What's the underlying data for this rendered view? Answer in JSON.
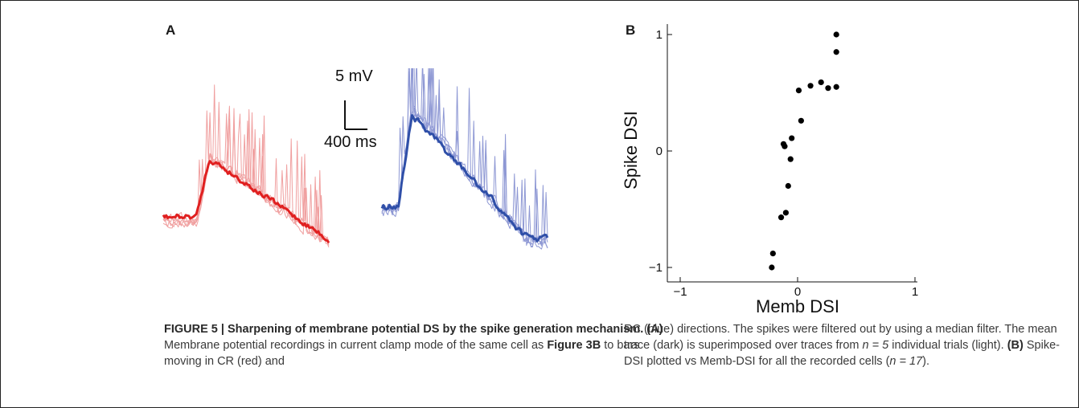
{
  "panel_a": {
    "label": "A",
    "scale_bar": {
      "voltage": "5 mV",
      "time": "400 ms"
    },
    "traces": {
      "cr_color": "#e02020",
      "cr_light_color": "#f0a0a0",
      "rc_color": "#2f4fa8",
      "rc_light_color": "#8e98d4"
    }
  },
  "panel_b": {
    "label": "B"
  },
  "chart_data": {
    "type": "scatter",
    "title": "",
    "xlabel": "Memb DSI",
    "ylabel": "Spike DSI",
    "xlim": [
      -1,
      1
    ],
    "ylim": [
      -1,
      1
    ],
    "xticks": [
      "−1",
      "0",
      "1"
    ],
    "yticks": [
      "−1",
      "0",
      "1"
    ],
    "grid": false,
    "series": [
      {
        "points": [
          [
            -0.22,
            -1.0
          ],
          [
            -0.21,
            -0.88
          ],
          [
            -0.14,
            -0.57
          ],
          [
            -0.1,
            -0.53
          ],
          [
            -0.08,
            -0.3
          ],
          [
            -0.06,
            -0.07
          ],
          [
            -0.05,
            0.11
          ],
          [
            -0.12,
            0.06
          ],
          [
            -0.11,
            0.04
          ],
          [
            0.03,
            0.26
          ],
          [
            0.01,
            0.52
          ],
          [
            0.11,
            0.56
          ],
          [
            0.2,
            0.59
          ],
          [
            0.26,
            0.54
          ],
          [
            0.33,
            0.55
          ],
          [
            0.33,
            0.85
          ],
          [
            0.33,
            1.0
          ]
        ]
      }
    ]
  },
  "caption": {
    "left_lead": "FIGURE 5 | Sharpening of membrane potential DS by the spike generation mechanism.",
    "left_a_tag": "(A)",
    "left_text_1": " Membrane potential recordings in current clamp mode of the same cell as ",
    "left_fig_ref": "Figure 3B",
    "left_text_2": " to bars moving in CR (red) and",
    "right_text_1": "RC (blue) directions. The spikes were filtered out by using a median filter. The mean trace (dark) is superimposed over traces from ",
    "right_n1": "n = 5",
    "right_text_2": " individual trials (light). ",
    "right_b_tag": "(B)",
    "right_text_3": " Spike-DSI plotted vs Memb-DSI for all the recorded cells (",
    "right_n2": "n = 17",
    "right_text_4": ")."
  }
}
